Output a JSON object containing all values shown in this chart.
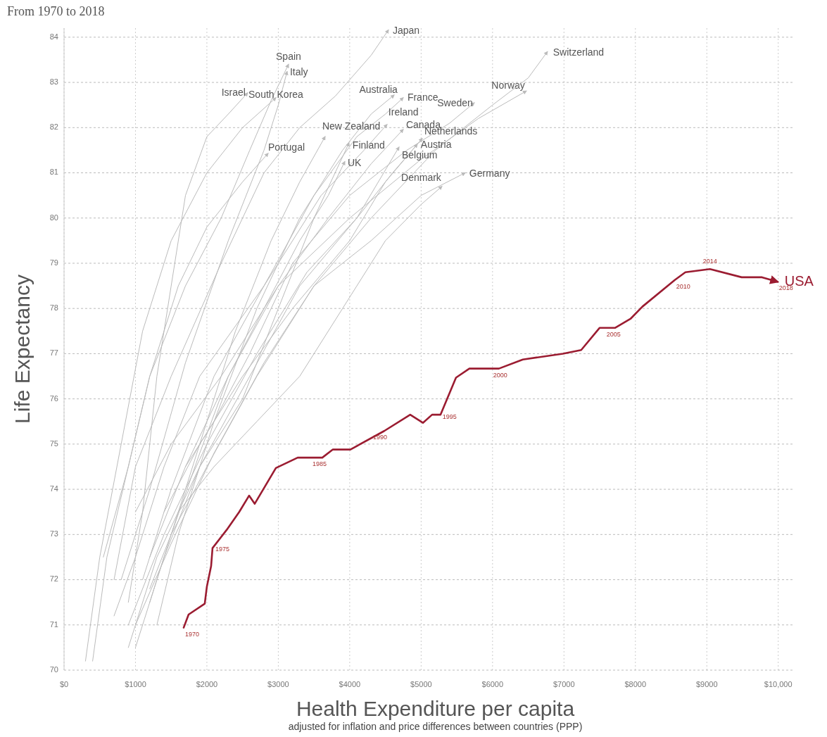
{
  "chart_data": {
    "type": "line",
    "subtitle": "From 1970 to 2018",
    "xlabel": "Health Expenditure per capita",
    "ylabel": "Life Expectancy",
    "annotations": [
      "adjusted for inflation and price differences between countries (PPP)",
      {
        "text": "1970",
        "x": 1675,
        "y": 70.94
      },
      {
        "text": "1975",
        "x": 2079,
        "y": 72.7
      },
      {
        "text": "1985",
        "x": 3616,
        "y": 74.7
      },
      {
        "text": "1990",
        "x": 4483,
        "y": 75.29
      },
      {
        "text": "1995",
        "x": 5271,
        "y": 75.65
      },
      {
        "text": "2000",
        "x": 6089,
        "y": 76.67
      },
      {
        "text": "2005",
        "x": 7714,
        "y": 77.57
      },
      {
        "text": "2010",
        "x": 8552,
        "y": 78.63
      },
      {
        "text": "2014",
        "x": 9044,
        "y": 78.87
      },
      {
        "text": "2018",
        "x": 9990,
        "y": 78.59
      }
    ],
    "xlim": [
      0,
      10200
    ],
    "ylim": [
      70,
      84.2
    ],
    "xticks": [
      {
        "value": 0,
        "label": "$0"
      },
      {
        "value": 1000,
        "label": "$1000"
      },
      {
        "value": 2000,
        "label": "$2000"
      },
      {
        "value": 3000,
        "label": "$3000"
      },
      {
        "value": 4000,
        "label": "$4000"
      },
      {
        "value": 5000,
        "label": "$5000"
      },
      {
        "value": 6000,
        "label": "$6000"
      },
      {
        "value": 7000,
        "label": "$7000"
      },
      {
        "value": 8000,
        "label": "$8000"
      },
      {
        "value": 9000,
        "label": "$9000"
      },
      {
        "value": 10000,
        "label": "$10,000"
      }
    ],
    "yticks": [
      70,
      71,
      72,
      73,
      74,
      75,
      76,
      77,
      78,
      79,
      80,
      81,
      82,
      83,
      84
    ],
    "grid": true,
    "series": [
      {
        "name": "Japan",
        "color": "#bbbbbb",
        "x": [
          700,
          1000,
          1500,
          2200,
          2800,
          3300,
          3800,
          4300,
          4542
        ],
        "values": [
          72.0,
          74.5,
          76.5,
          79.0,
          81.0,
          82.0,
          82.7,
          83.6,
          84.16
        ]
      },
      {
        "name": "Spain",
        "color": "#bbbbbb",
        "x": [
          550,
          900,
          1200,
          1700,
          2200,
          2600,
          2900,
          3143
        ],
        "values": [
          72.5,
          74.5,
          76.5,
          78.5,
          80.0,
          81.5,
          82.6,
          83.4
        ]
      },
      {
        "name": "Italy",
        "color": "#bbbbbb",
        "x": [
          800,
          1200,
          1700,
          2300,
          2800,
          3000,
          3123
        ],
        "values": [
          72.0,
          74.0,
          76.8,
          79.5,
          81.5,
          82.5,
          83.24
        ]
      },
      {
        "name": "Israel",
        "color": "#bbbbbb",
        "x": [
          900,
          1100,
          1300,
          1500,
          1700,
          2000,
          2300,
          2571
        ],
        "values": [
          71.5,
          73.5,
          76.5,
          78.5,
          80.5,
          81.8,
          82.3,
          82.77
        ]
      },
      {
        "name": "South Korea",
        "color": "#bbbbbb",
        "x": [
          300,
          500,
          800,
          1100,
          1500,
          2000,
          2500,
          2966
        ],
        "values": [
          70.2,
          72.5,
          75.0,
          77.5,
          79.5,
          81.0,
          82.0,
          82.66
        ]
      },
      {
        "name": "Australia",
        "color": "#bbbbbb",
        "x": [
          1300,
          1600,
          2100,
          2700,
          3300,
          3900,
          4300,
          4621
        ],
        "values": [
          71.0,
          73.0,
          75.5,
          78.0,
          80.0,
          81.5,
          82.3,
          82.72
        ]
      },
      {
        "name": "France",
        "color": "#bbbbbb",
        "x": [
          1100,
          1500,
          2100,
          2800,
          3500,
          4100,
          4500,
          4749
        ],
        "values": [
          72.0,
          74.0,
          76.5,
          78.5,
          80.5,
          81.8,
          82.3,
          82.66
        ]
      },
      {
        "name": "Norway",
        "color": "#bbbbbb",
        "x": [
          1000,
          1500,
          2200,
          3000,
          4000,
          5000,
          5800,
          6473
        ],
        "values": [
          73.5,
          75.0,
          76.5,
          78.5,
          80.0,
          81.3,
          82.2,
          82.81
        ]
      },
      {
        "name": "Switzerland",
        "color": "#bbbbbb",
        "x": [
          1500,
          2000,
          2700,
          3500,
          4300,
          5200,
          6000,
          6500,
          6768
        ],
        "values": [
          73.0,
          74.5,
          76.5,
          78.5,
          80.0,
          81.5,
          82.5,
          83.1,
          83.68
        ]
      },
      {
        "name": "Sweden",
        "color": "#bbbbbb",
        "x": [
          1700,
          2100,
          2600,
          3200,
          4000,
          4800,
          5400,
          5744
        ],
        "values": [
          74.5,
          75.5,
          77.0,
          79.0,
          80.5,
          81.5,
          82.1,
          82.55
        ]
      },
      {
        "name": "Ireland",
        "color": "#bbbbbb",
        "x": [
          700,
          1000,
          1400,
          1900,
          2800,
          3600,
          4200,
          4522
        ],
        "values": [
          71.2,
          72.5,
          74.5,
          76.5,
          78.5,
          80.5,
          81.5,
          82.07
        ]
      },
      {
        "name": "Canada",
        "color": "#bbbbbb",
        "x": [
          1200,
          1700,
          2300,
          3000,
          3700,
          4300,
          4749
        ],
        "values": [
          72.5,
          74.5,
          76.5,
          78.5,
          80.0,
          81.2,
          81.96
        ]
      },
      {
        "name": "Netherlands",
        "color": "#bbbbbb",
        "x": [
          1400,
          1900,
          2500,
          3200,
          4000,
          4500,
          5015
        ],
        "values": [
          73.5,
          75.0,
          76.5,
          78.0,
          79.5,
          80.8,
          81.76
        ]
      },
      {
        "name": "Austria",
        "color": "#bbbbbb",
        "x": [
          900,
          1300,
          1900,
          2600,
          3300,
          4100,
          4600,
          4946
        ],
        "values": [
          70.5,
          72.5,
          74.5,
          76.5,
          78.5,
          80.0,
          81.0,
          81.63
        ]
      },
      {
        "name": "Belgium",
        "color": "#bbbbbb",
        "x": [
          900,
          1400,
          2000,
          2700,
          3400,
          4100,
          4690
        ],
        "values": [
          71.0,
          73.0,
          75.0,
          77.0,
          78.8,
          80.0,
          81.57
        ]
      },
      {
        "name": "Germany",
        "color": "#bbbbbb",
        "x": [
          1000,
          1500,
          2100,
          2800,
          3500,
          4300,
          5000,
          5616
        ],
        "values": [
          71.0,
          72.8,
          74.8,
          76.8,
          78.5,
          79.5,
          80.5,
          81.0
        ]
      },
      {
        "name": "Denmark",
        "color": "#bbbbbb",
        "x": [
          1600,
          2100,
          2700,
          3300,
          3900,
          4500,
          5000,
          5291
        ],
        "values": [
          73.5,
          74.5,
          75.5,
          76.5,
          78.0,
          79.5,
          80.3,
          80.7
        ]
      },
      {
        "name": "New Zealand",
        "color": "#bbbbbb",
        "x": [
          1200,
          1500,
          1900,
          2400,
          2900,
          3300,
          3655
        ],
        "values": [
          71.5,
          73.0,
          75.0,
          77.5,
          79.5,
          80.8,
          81.8
        ]
      },
      {
        "name": "Finland",
        "color": "#bbbbbb",
        "x": [
          1000,
          1400,
          1900,
          2500,
          3000,
          3500,
          3990
        ],
        "values": [
          70.5,
          72.5,
          74.5,
          76.0,
          78.0,
          80.0,
          81.66
        ]
      },
      {
        "name": "UK",
        "color": "#bbbbbb",
        "x": [
          1200,
          1500,
          1900,
          2300,
          2800,
          3300,
          3700,
          3931
        ],
        "values": [
          71.8,
          73.0,
          74.8,
          76.5,
          78.0,
          79.5,
          80.5,
          81.25
        ]
      },
      {
        "name": "Portugal",
        "color": "#bbbbbb",
        "x": [
          400,
          600,
          900,
          1200,
          1600,
          2000,
          2500,
          2857
        ],
        "values": [
          70.2,
          72.5,
          74.5,
          76.5,
          78.5,
          79.8,
          80.8,
          81.43
        ]
      },
      {
        "name": "USA",
        "color": "#9b1c31",
        "x": [
          1675,
          1744,
          1970,
          2000,
          2059,
          2079,
          2276,
          2453,
          2591,
          2670,
          2966,
          3271,
          3616,
          3764,
          4010,
          4483,
          4847,
          5025,
          5153,
          5271,
          5488,
          5675,
          6089,
          6424,
          6985,
          7241,
          7498,
          7714,
          7931,
          8098,
          8552,
          8700,
          9044,
          9488,
          9773,
          9990
        ],
        "values": [
          70.94,
          71.23,
          71.47,
          71.85,
          72.3,
          72.7,
          73.1,
          73.5,
          73.86,
          73.68,
          74.47,
          74.7,
          74.7,
          74.88,
          74.88,
          75.29,
          75.65,
          75.47,
          75.65,
          75.65,
          76.47,
          76.67,
          76.67,
          76.87,
          77.0,
          77.08,
          77.57,
          77.57,
          77.77,
          78.04,
          78.63,
          78.8,
          78.87,
          78.69,
          78.69,
          78.59
        ]
      }
    ]
  }
}
